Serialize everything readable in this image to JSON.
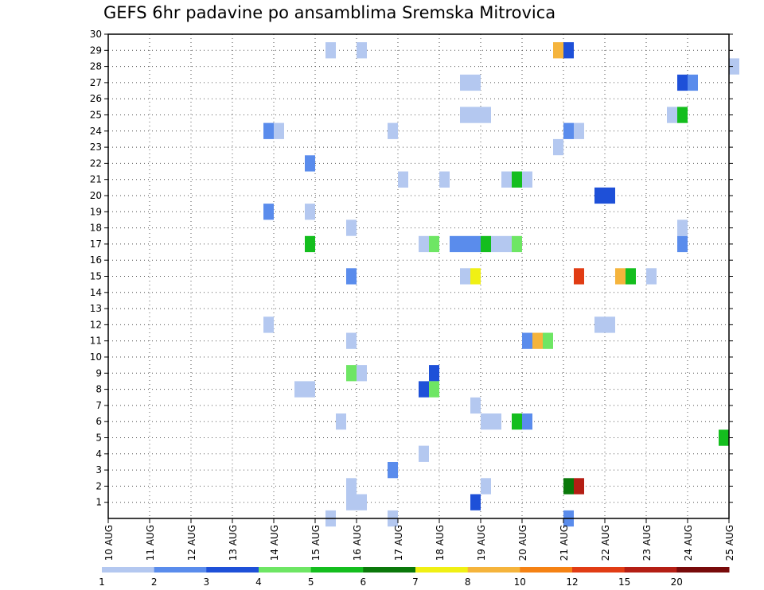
{
  "chart_data": {
    "type": "heatmap",
    "title": "GEFS 6hr padavine po ansamblima Sremska Mitrovica",
    "x_ticks": [
      "10 AUG",
      "11 AUG",
      "12 AUG",
      "13 AUG",
      "14 AUG",
      "15 AUG",
      "16 AUG",
      "17 AUG",
      "18 AUG",
      "19 AUG",
      "20 AUG",
      "21 AUG",
      "22 AUG",
      "23 AUG",
      "24 AUG",
      "25 AUG"
    ],
    "y_ticks": [
      1,
      2,
      3,
      4,
      5,
      6,
      7,
      8,
      9,
      10,
      11,
      12,
      13,
      14,
      15,
      16,
      17,
      18,
      19,
      20,
      21,
      22,
      23,
      24,
      25,
      26,
      27,
      28,
      29,
      30
    ],
    "x_step_hours": 6,
    "grid": true,
    "legend_position": "bottom",
    "legend": {
      "boundaries": [
        "1",
        "2",
        "3",
        "4",
        "5",
        "6",
        "7",
        "8",
        "10",
        "12",
        "15",
        "20"
      ],
      "colors": [
        "#b4c8f0",
        "#5a8cec",
        "#1e50d8",
        "#6ee664",
        "#14be1e",
        "#0a780a",
        "#f0f014",
        "#f5b43c",
        "#f58214",
        "#e13c14",
        "#b41e14",
        "#780a0a"
      ]
    },
    "cells": [
      {
        "x": "15 AUG 06Z",
        "y": 29,
        "cat": 0
      },
      {
        "x": "16 AUG 00Z",
        "y": 29,
        "cat": 0
      },
      {
        "x": "20 AUG 18Z",
        "y": 29,
        "cat": 7
      },
      {
        "x": "21 AUG 00Z",
        "y": 29,
        "cat": 2
      },
      {
        "x": "25 AUG 00Z",
        "y": 28,
        "cat": 0
      },
      {
        "x": "18 AUG 12Z",
        "y": 27,
        "cat": 0
      },
      {
        "x": "18 AUG 18Z",
        "y": 27,
        "cat": 0
      },
      {
        "x": "23 AUG 18Z",
        "y": 27,
        "cat": 2
      },
      {
        "x": "24 AUG 00Z",
        "y": 27,
        "cat": 1
      },
      {
        "x": "18 AUG 12Z",
        "y": 25,
        "cat": 0
      },
      {
        "x": "18 AUG 18Z",
        "y": 25,
        "cat": 0
      },
      {
        "x": "19 AUG 00Z",
        "y": 25,
        "cat": 0
      },
      {
        "x": "23 AUG 12Z",
        "y": 25,
        "cat": 0
      },
      {
        "x": "23 AUG 18Z",
        "y": 25,
        "cat": 4
      },
      {
        "x": "13 AUG 18Z",
        "y": 24,
        "cat": 1
      },
      {
        "x": "14 AUG 00Z",
        "y": 24,
        "cat": 0
      },
      {
        "x": "16 AUG 18Z",
        "y": 24,
        "cat": 0
      },
      {
        "x": "21 AUG 00Z",
        "y": 24,
        "cat": 1
      },
      {
        "x": "21 AUG 06Z",
        "y": 24,
        "cat": 0
      },
      {
        "x": "20 AUG 18Z",
        "y": 23,
        "cat": 0
      },
      {
        "x": "14 AUG 18Z",
        "y": 22,
        "cat": 1
      },
      {
        "x": "17 AUG 00Z",
        "y": 21,
        "cat": 0
      },
      {
        "x": "18 AUG 00Z",
        "y": 21,
        "cat": 0
      },
      {
        "x": "19 AUG 12Z",
        "y": 21,
        "cat": 0
      },
      {
        "x": "19 AUG 18Z",
        "y": 21,
        "cat": 4
      },
      {
        "x": "20 AUG 00Z",
        "y": 21,
        "cat": 0
      },
      {
        "x": "21 AUG 18Z",
        "y": 20,
        "cat": 2
      },
      {
        "x": "22 AUG 00Z",
        "y": 20,
        "cat": 2
      },
      {
        "x": "13 AUG 18Z",
        "y": 19,
        "cat": 1
      },
      {
        "x": "14 AUG 18Z",
        "y": 19,
        "cat": 0
      },
      {
        "x": "15 AUG 18Z",
        "y": 18,
        "cat": 0
      },
      {
        "x": "23 AUG 18Z",
        "y": 18,
        "cat": 0
      },
      {
        "x": "14 AUG 18Z",
        "y": 17,
        "cat": 4
      },
      {
        "x": "17 AUG 12Z",
        "y": 17,
        "cat": 0
      },
      {
        "x": "17 AUG 18Z",
        "y": 17,
        "cat": 3
      },
      {
        "x": "18 AUG 06Z",
        "y": 17,
        "cat": 1
      },
      {
        "x": "18 AUG 12Z",
        "y": 17,
        "cat": 1
      },
      {
        "x": "18 AUG 18Z",
        "y": 17,
        "cat": 1
      },
      {
        "x": "19 AUG 00Z",
        "y": 17,
        "cat": 4
      },
      {
        "x": "19 AUG 06Z",
        "y": 17,
        "cat": 0
      },
      {
        "x": "19 AUG 12Z",
        "y": 17,
        "cat": 0
      },
      {
        "x": "19 AUG 18Z",
        "y": 17,
        "cat": 3
      },
      {
        "x": "23 AUG 18Z",
        "y": 17,
        "cat": 1
      },
      {
        "x": "15 AUG 18Z",
        "y": 15,
        "cat": 1
      },
      {
        "x": "18 AUG 12Z",
        "y": 15,
        "cat": 0
      },
      {
        "x": "18 AUG 18Z",
        "y": 15,
        "cat": 6
      },
      {
        "x": "21 AUG 06Z",
        "y": 15,
        "cat": 9
      },
      {
        "x": "22 AUG 06Z",
        "y": 15,
        "cat": 7
      },
      {
        "x": "22 AUG 12Z",
        "y": 15,
        "cat": 4
      },
      {
        "x": "23 AUG 00Z",
        "y": 15,
        "cat": 0
      },
      {
        "x": "13 AUG 18Z",
        "y": 12,
        "cat": 0
      },
      {
        "x": "21 AUG 18Z",
        "y": 12,
        "cat": 0
      },
      {
        "x": "22 AUG 00Z",
        "y": 12,
        "cat": 0
      },
      {
        "x": "15 AUG 18Z",
        "y": 11,
        "cat": 0
      },
      {
        "x": "20 AUG 00Z",
        "y": 11,
        "cat": 1
      },
      {
        "x": "20 AUG 06Z",
        "y": 11,
        "cat": 7
      },
      {
        "x": "20 AUG 12Z",
        "y": 11,
        "cat": 3
      },
      {
        "x": "15 AUG 18Z",
        "y": 9,
        "cat": 3
      },
      {
        "x": "16 AUG 00Z",
        "y": 9,
        "cat": 0
      },
      {
        "x": "17 AUG 18Z",
        "y": 9,
        "cat": 2
      },
      {
        "x": "14 AUG 12Z",
        "y": 8,
        "cat": 0
      },
      {
        "x": "14 AUG 18Z",
        "y": 8,
        "cat": 0
      },
      {
        "x": "17 AUG 12Z",
        "y": 8,
        "cat": 2
      },
      {
        "x": "17 AUG 18Z",
        "y": 8,
        "cat": 3
      },
      {
        "x": "18 AUG 18Z",
        "y": 7,
        "cat": 0
      },
      {
        "x": "15 AUG 12Z",
        "y": 6,
        "cat": 0
      },
      {
        "x": "19 AUG 00Z",
        "y": 6,
        "cat": 0
      },
      {
        "x": "19 AUG 06Z",
        "y": 6,
        "cat": 0
      },
      {
        "x": "19 AUG 18Z",
        "y": 6,
        "cat": 4
      },
      {
        "x": "20 AUG 00Z",
        "y": 6,
        "cat": 1
      },
      {
        "x": "24 AUG 18Z",
        "y": 5,
        "cat": 4
      },
      {
        "x": "17 AUG 12Z",
        "y": 4,
        "cat": 0
      },
      {
        "x": "16 AUG 18Z",
        "y": 3,
        "cat": 1
      },
      {
        "x": "15 AUG 18Z",
        "y": 2,
        "cat": 0
      },
      {
        "x": "19 AUG 00Z",
        "y": 2,
        "cat": 0
      },
      {
        "x": "21 AUG 00Z",
        "y": 2,
        "cat": 5
      },
      {
        "x": "21 AUG 06Z",
        "y": 2,
        "cat": 10
      },
      {
        "x": "15 AUG 18Z",
        "y": 1,
        "cat": 0
      },
      {
        "x": "16 AUG 00Z",
        "y": 1,
        "cat": 0
      },
      {
        "x": "18 AUG 18Z",
        "y": 1,
        "cat": 2
      },
      {
        "x": "15 AUG 06Z",
        "y": 0,
        "cat": 0
      },
      {
        "x": "16 AUG 18Z",
        "y": 0,
        "cat": 0
      },
      {
        "x": "21 AUG 00Z",
        "y": 0,
        "cat": 1
      }
    ]
  }
}
